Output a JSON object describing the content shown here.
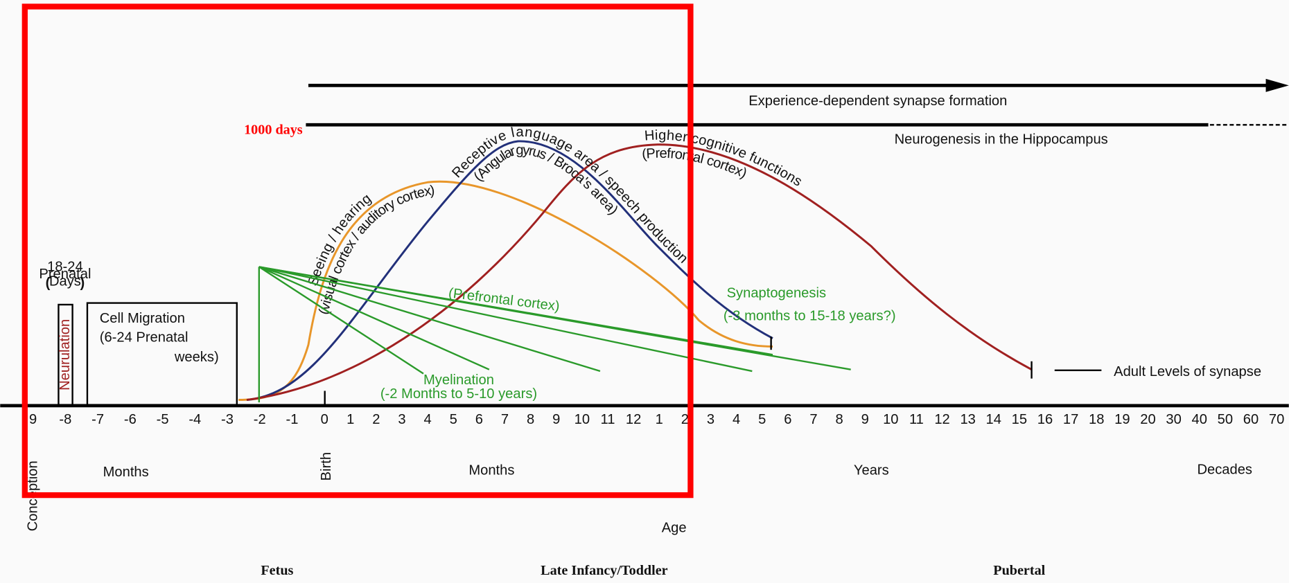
{
  "highlight": {
    "label": "1000 days"
  },
  "processes": {
    "experience": "Experience-dependent synapse formation",
    "neurogenesis": "Neurogenesis in the Hippocampus",
    "neurulation": {
      "label": "Neurulation",
      "note": [
        "18-24",
        "Prenatal",
        "Days"
      ]
    },
    "migration": [
      "Cell Migration",
      "(6-24 Prenatal",
      "weeks)"
    ],
    "seeing": {
      "label": "Seeing / hearing",
      "detail": "(visual cortex / auditory cortex)"
    },
    "language": {
      "label": "Receptive language area / speech production",
      "detail": "(Angular gyrus / Broca's area)"
    },
    "cognitive": {
      "label": "Higher cognitive functions",
      "detail": "(Prefrontal cortex)"
    },
    "myelination": {
      "label": "Myelination",
      "detail": "(-2 Months to 5-10 years)",
      "region": "(Prefrontal cortex)"
    },
    "synaptogenesis": {
      "label": "Synaptogenesis",
      "detail": "(-3 months to 15-18 years?)"
    },
    "adult": "Adult Levels of synapse"
  },
  "axis": {
    "ticks": [
      "9",
      "-8",
      "-7",
      "-6",
      "-5",
      "-4",
      "-3",
      "-2",
      "-1",
      "0",
      "1",
      "2",
      "3",
      "4",
      "5",
      "6",
      "7",
      "8",
      "9",
      "10",
      "11",
      "12",
      "1",
      "2",
      "3",
      "4",
      "5",
      "6",
      "7",
      "8",
      "9",
      "10",
      "11",
      "12",
      "13",
      "14",
      "15",
      "16",
      "17",
      "18",
      "19",
      "20",
      "30",
      "40",
      "50",
      "60",
      "70"
    ],
    "markers": {
      "conception": "Conception",
      "birth": "Birth"
    },
    "units": [
      "Months",
      "Months",
      "Years",
      "Decades"
    ],
    "title": "Age"
  },
  "stages": [
    "Fetus",
    "Late Infancy/Toddler",
    "Pubertal"
  ]
}
